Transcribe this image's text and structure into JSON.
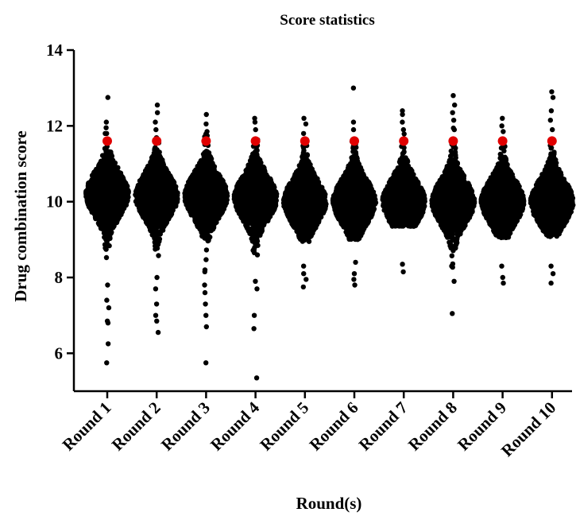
{
  "chart_data": {
    "type": "scatter",
    "subtype": "beeswarm",
    "title": "Score statistics",
    "xlabel": "Round(s)",
    "ylabel": "Drug combination score",
    "ylim": [
      5,
      14
    ],
    "yticks": [
      6,
      8,
      10,
      12,
      14
    ],
    "categories": [
      "Round 1",
      "Round 2",
      "Round 3",
      "Round 4",
      "Round 5",
      "Round 6",
      "Round 7",
      "Round 8",
      "Round 9",
      "Round 10"
    ],
    "grid": false,
    "legend": "none",
    "series": [
      {
        "color": "#000000",
        "points": [
          {
            "category": "Round 1",
            "center": 10.2,
            "max": 12.75,
            "min": 5.75,
            "outliers": [
              12.75,
              12.1,
              11.95,
              11.8,
              7.8,
              7.4,
              7.2,
              6.85,
              6.8,
              6.25,
              5.75
            ]
          },
          {
            "category": "Round 2",
            "center": 10.15,
            "max": 12.55,
            "min": 6.55,
            "outliers": [
              12.55,
              12.35,
              12.1,
              11.9,
              8.0,
              7.7,
              7.3,
              7.0,
              6.85,
              6.55
            ]
          },
          {
            "category": "Round 3",
            "center": 10.15,
            "max": 12.3,
            "min": 5.75,
            "outliers": [
              12.3,
              12.05,
              11.85,
              8.2,
              7.8,
              7.6,
              7.3,
              7.0,
              6.7,
              5.75
            ]
          },
          {
            "category": "Round 4",
            "center": 10.1,
            "max": 12.2,
            "min": 5.35,
            "outliers": [
              12.2,
              12.1,
              11.9,
              7.9,
              7.7,
              7.0,
              6.65,
              5.35
            ]
          },
          {
            "category": "Round 5",
            "center": 10.0,
            "max": 12.2,
            "min": 7.75,
            "outliers": [
              12.2,
              12.05,
              11.8,
              8.3,
              8.1,
              7.95,
              7.75
            ]
          },
          {
            "category": "Round 6",
            "center": 10.0,
            "max": 13.0,
            "min": 7.8,
            "outliers": [
              13.0,
              12.1,
              11.9,
              8.4,
              8.1,
              7.95,
              7.8
            ]
          },
          {
            "category": "Round 7",
            "center": 10.0,
            "max": 12.4,
            "min": 8.15,
            "outliers": [
              12.4,
              12.3,
              12.1,
              11.9,
              8.35,
              8.15
            ]
          },
          {
            "category": "Round 8",
            "center": 10.0,
            "max": 12.8,
            "min": 7.05,
            "outliers": [
              12.8,
              12.55,
              12.35,
              12.15,
              11.9,
              8.3,
              7.9,
              7.05
            ]
          },
          {
            "category": "Round 9",
            "center": 10.0,
            "max": 12.2,
            "min": 7.85,
            "outliers": [
              12.2,
              12.0,
              11.85,
              8.3,
              8.0,
              7.85
            ]
          },
          {
            "category": "Round 10",
            "center": 10.0,
            "max": 12.9,
            "min": 7.85,
            "outliers": [
              12.9,
              12.75,
              12.4,
              12.15,
              11.9,
              8.3,
              8.1,
              7.85
            ]
          }
        ]
      },
      {
        "color": "#e00000",
        "points": [
          {
            "category": "Round 1",
            "value": 11.6
          },
          {
            "category": "Round 2",
            "value": 11.6
          },
          {
            "category": "Round 3",
            "value": 11.6
          },
          {
            "category": "Round 4",
            "value": 11.6
          },
          {
            "category": "Round 5",
            "value": 11.6
          },
          {
            "category": "Round 6",
            "value": 11.6
          },
          {
            "category": "Round 7",
            "value": 11.6
          },
          {
            "category": "Round 8",
            "value": 11.6
          },
          {
            "category": "Round 9",
            "value": 11.6
          },
          {
            "category": "Round 10",
            "value": 11.6
          }
        ]
      }
    ]
  }
}
